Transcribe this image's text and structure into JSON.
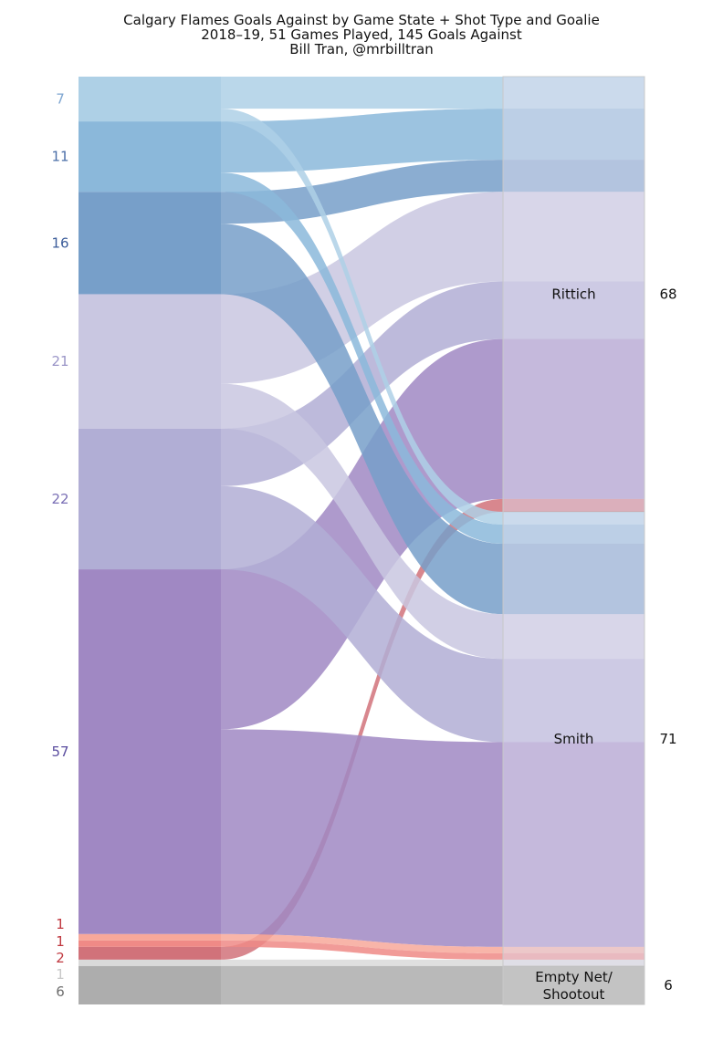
{
  "chart_data": {
    "type": "sankey",
    "title": "Calgary Flames Goals Against by Game State + Shot Type and Goalie",
    "subtitle": "2018–19, 51 Games Played, 145 Goals Against",
    "credit": "Bill Tran, @mrbilltran",
    "source_nodes": [
      {
        "id": "s7",
        "label": "7",
        "value": 7,
        "color": "#aed0e6",
        "label_color": "#7ea6d1"
      },
      {
        "id": "s11",
        "label": "11",
        "value": 11,
        "color": "#8bb8da",
        "label_color": "#4b6fa8"
      },
      {
        "id": "s16",
        "label": "16",
        "value": 16,
        "color": "#779fc9",
        "label_color": "#3c5d9a"
      },
      {
        "id": "s21",
        "label": "21",
        "value": 21,
        "color": "#c9c7e1",
        "label_color": "#9a95c7"
      },
      {
        "id": "s22",
        "label": "22",
        "value": 22,
        "color": "#b1aed5",
        "label_color": "#7a6fb5"
      },
      {
        "id": "s57",
        "label": "57",
        "value": 57,
        "color": "#a088c3",
        "label_color": "#5b4ea0"
      },
      {
        "id": "r1a",
        "label": "1",
        "value": 1,
        "color": "#f7a89a",
        "label_color": "#c0383f"
      },
      {
        "id": "r1b",
        "label": "1",
        "value": 1,
        "color": "#ef8a86",
        "label_color": "#c0383f"
      },
      {
        "id": "r2",
        "label": "2",
        "value": 2,
        "color": "#d1727a",
        "label_color": "#c0383f"
      },
      {
        "id": "g1",
        "label": "1",
        "value": 1,
        "color": "#d9d9d9",
        "label_color": "#c8c8c8"
      },
      {
        "id": "g6",
        "label": "6",
        "value": 6,
        "color": "#adadad",
        "label_color": "#6e6e6e"
      }
    ],
    "target_nodes": [
      {
        "id": "rittich",
        "label": "Rittich",
        "value": 68,
        "total_label": "68"
      },
      {
        "id": "smith",
        "label": "Smith",
        "value": 71,
        "total_label": "71"
      },
      {
        "id": "en",
        "label": "Empty Net/",
        "label2": "Shootout",
        "value": 6,
        "total_label": "6"
      }
    ],
    "links": [
      {
        "source": "s7",
        "target": "rittich",
        "value": 5
      },
      {
        "source": "s11",
        "target": "rittich",
        "value": 8
      },
      {
        "source": "s16",
        "target": "rittich",
        "value": 5
      },
      {
        "source": "s21",
        "target": "rittich",
        "value": 14
      },
      {
        "source": "s22",
        "target": "rittich",
        "value": 9
      },
      {
        "source": "s57",
        "target": "rittich",
        "value": 25
      },
      {
        "source": "r2",
        "target": "rittich",
        "value": 2
      },
      {
        "source": "s7",
        "target": "smith",
        "value": 2
      },
      {
        "source": "s11",
        "target": "smith",
        "value": 3
      },
      {
        "source": "s16",
        "target": "smith",
        "value": 11
      },
      {
        "source": "s21",
        "target": "smith",
        "value": 7
      },
      {
        "source": "s22",
        "target": "smith",
        "value": 13
      },
      {
        "source": "s57",
        "target": "smith",
        "value": 32
      },
      {
        "source": "r1a",
        "target": "smith",
        "value": 1
      },
      {
        "source": "r1b",
        "target": "smith",
        "value": 1
      },
      {
        "source": "g1",
        "target": "smith",
        "value": 1
      },
      {
        "source": "g6",
        "target": "en",
        "value": 6
      }
    ],
    "total": 145
  }
}
